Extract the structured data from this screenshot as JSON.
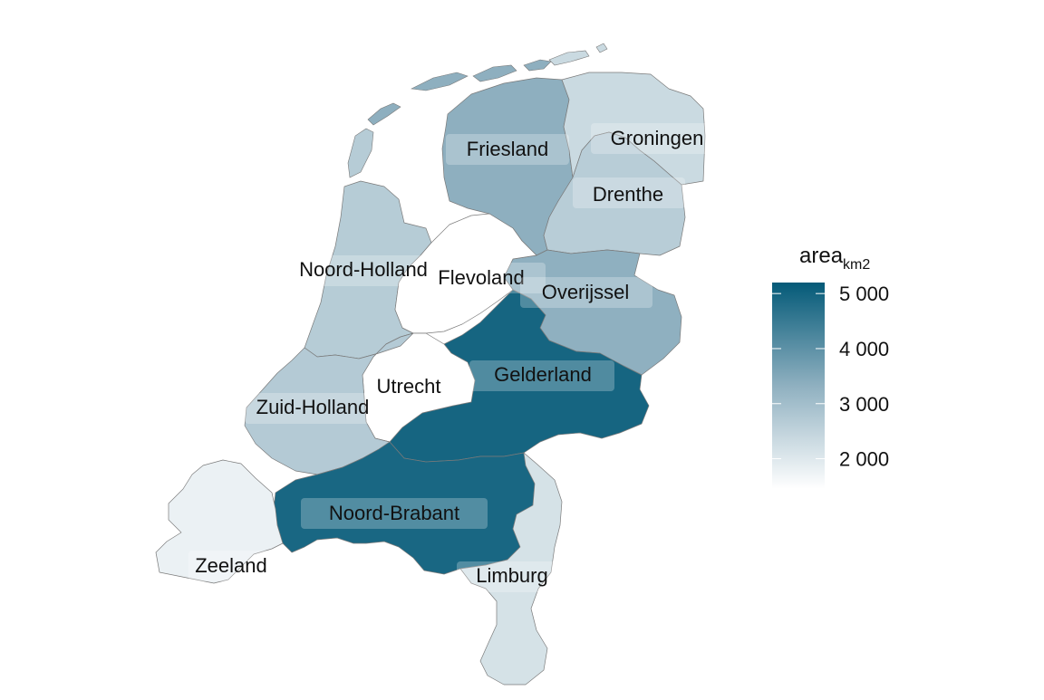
{
  "chart_data": {
    "type": "choropleth",
    "region": "Netherlands provinces",
    "variable": "area",
    "unit": "km2",
    "legend": {
      "title_main": "area",
      "title_sub": "km2",
      "range": [
        1450,
        5200
      ],
      "ticks": [
        {
          "value": 5000,
          "label": "5 000"
        },
        {
          "value": 4000,
          "label": "4 000"
        },
        {
          "value": 3000,
          "label": "3 000"
        },
        {
          "value": 2000,
          "label": "2 000"
        }
      ],
      "color_low": "#ffffff",
      "color_high": "#045a78"
    },
    "provinces": [
      {
        "key": "friesland",
        "name": "Friesland",
        "area": 3340
      },
      {
        "key": "groningen",
        "name": "Groningen",
        "area": 2330
      },
      {
        "key": "drenthe",
        "name": "Drenthe",
        "area": 2640
      },
      {
        "key": "noord-holland",
        "name": "Noord-Holland",
        "area": 2670
      },
      {
        "key": "flevoland",
        "name": "Flevoland",
        "area": 1420
      },
      {
        "key": "overijssel",
        "name": "Overijssel",
        "area": 3320
      },
      {
        "key": "gelderland",
        "name": "Gelderland",
        "area": 4960
      },
      {
        "key": "utrecht",
        "name": "Utrecht",
        "area": 1450
      },
      {
        "key": "zuid-holland",
        "name": "Zuid-Holland",
        "area": 2700
      },
      {
        "key": "noord-brabant",
        "name": "Noord-Brabant",
        "area": 4910
      },
      {
        "key": "zeeland",
        "name": "Zeeland",
        "area": 1780
      },
      {
        "key": "limburg",
        "name": "Limburg",
        "area": 2150
      }
    ]
  }
}
